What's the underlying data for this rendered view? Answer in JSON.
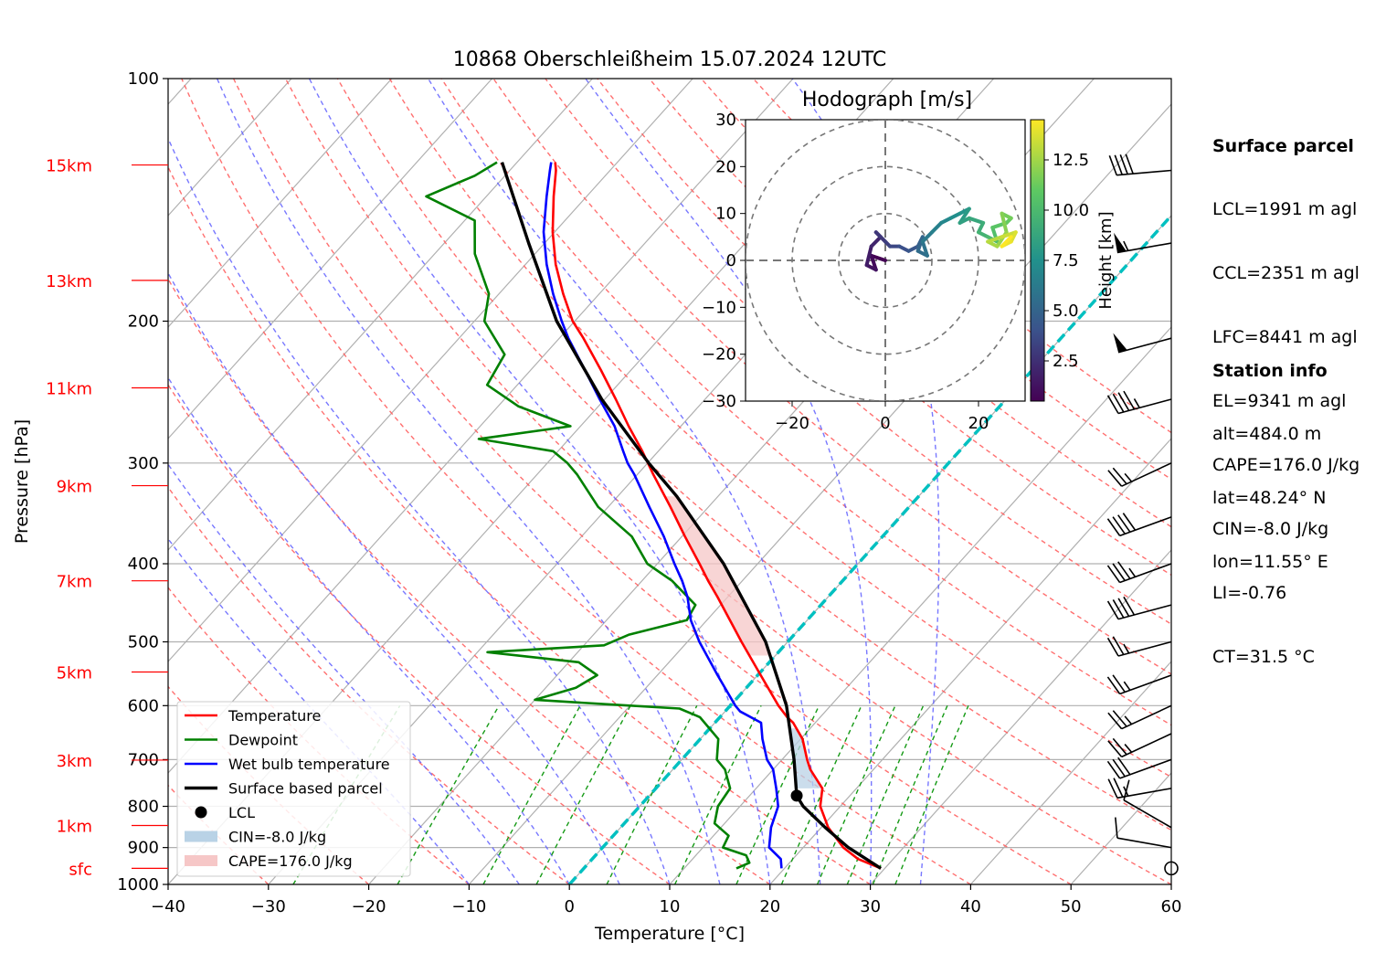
{
  "title": "10868 Oberschleißheim 15.07.2024 12UTC",
  "chart_data": {
    "type": "skew-t log-p sounding",
    "title": "10868 Oberschleißheim 15.07.2024 12UTC",
    "xlabel": "Temperature [°C]",
    "ylabel": "Pressure [hPa]",
    "xlim": [
      -40,
      60
    ],
    "ylim": [
      1000,
      100
    ],
    "y_scale": "log",
    "x_ticks": [
      "−40",
      "−30",
      "−20",
      "−10",
      "0",
      "10",
      "20",
      "30",
      "40",
      "50",
      "60"
    ],
    "y_ticks": [
      "1000",
      "900",
      "800",
      "700",
      "600",
      "500",
      "400",
      "300",
      "200",
      "100"
    ],
    "height_labels": [
      {
        "label": "sfc",
        "p": 955
      },
      {
        "label": "1km",
        "p": 845
      },
      {
        "label": "3km",
        "p": 701
      },
      {
        "label": "5km",
        "p": 545
      },
      {
        "label": "7km",
        "p": 420
      },
      {
        "label": "9km",
        "p": 320
      },
      {
        "label": "11km",
        "p": 242
      },
      {
        "label": "13km",
        "p": 178
      },
      {
        "label": "15km",
        "p": 128
      }
    ],
    "legend": {
      "position": "lower-left",
      "entries": [
        {
          "label": "Temperature",
          "color": "#ff0000"
        },
        {
          "label": "Dewpoint",
          "color": "#008000"
        },
        {
          "label": "Wet bulb temperature",
          "color": "#0000ff"
        },
        {
          "label": "Surface based parcel",
          "color": "#000000"
        },
        {
          "label": "LCL",
          "color": "#000000"
        },
        {
          "label": "CIN=-8.0 J/kg",
          "color": "#b9d2e6"
        },
        {
          "label": "CAPE=176.0 J/kg",
          "color": "#f6c7c7"
        }
      ]
    },
    "temperature": [
      [
        955,
        29.6
      ],
      [
        930,
        26.5
      ],
      [
        900,
        24.0
      ],
      [
        850,
        20.7
      ],
      [
        800,
        18.0
      ],
      [
        760,
        16.6
      ],
      [
        720,
        13.7
      ],
      [
        700,
        12.5
      ],
      [
        660,
        10.2
      ],
      [
        630,
        7.8
      ],
      [
        620,
        6.7
      ],
      [
        600,
        4.8
      ],
      [
        550,
        0.3
      ],
      [
        500,
        -4.6
      ],
      [
        470,
        -7.7
      ],
      [
        440,
        -11.0
      ],
      [
        420,
        -13.4
      ],
      [
        400,
        -15.8
      ],
      [
        370,
        -19.7
      ],
      [
        340,
        -23.8
      ],
      [
        310,
        -28.4
      ],
      [
        290,
        -31.6
      ],
      [
        270,
        -35.2
      ],
      [
        250,
        -38.9
      ],
      [
        230,
        -43.0
      ],
      [
        210,
        -47.6
      ],
      [
        200,
        -50.2
      ],
      [
        185,
        -53.6
      ],
      [
        170,
        -57.0
      ],
      [
        155,
        -60.2
      ],
      [
        140,
        -63.3
      ],
      [
        130,
        -65.4
      ],
      [
        127,
        -66.2
      ]
    ],
    "dewpoint": [
      [
        955,
        15.2
      ],
      [
        940,
        16.0
      ],
      [
        920,
        15.0
      ],
      [
        900,
        12.0
      ],
      [
        870,
        11.5
      ],
      [
        840,
        9.0
      ],
      [
        800,
        7.8
      ],
      [
        760,
        7.4
      ],
      [
        720,
        5.2
      ],
      [
        700,
        3.5
      ],
      [
        660,
        1.8
      ],
      [
        620,
        -2.0
      ],
      [
        605,
        -4.8
      ],
      [
        598,
        -12.0
      ],
      [
        590,
        -20.0
      ],
      [
        570,
        -17.0
      ],
      [
        550,
        -16.0
      ],
      [
        530,
        -19.0
      ],
      [
        515,
        -29.0
      ],
      [
        505,
        -18.0
      ],
      [
        490,
        -16.5
      ],
      [
        470,
        -12.0
      ],
      [
        450,
        -12.5
      ],
      [
        420,
        -17.0
      ],
      [
        400,
        -21.0
      ],
      [
        370,
        -25.0
      ],
      [
        340,
        -31.0
      ],
      [
        310,
        -36.0
      ],
      [
        300,
        -38.0
      ],
      [
        290,
        -40.5
      ],
      [
        280,
        -49.0
      ],
      [
        270,
        -41.0
      ],
      [
        255,
        -48.0
      ],
      [
        240,
        -53.0
      ],
      [
        220,
        -54.0
      ],
      [
        200,
        -59.0
      ],
      [
        185,
        -61.0
      ],
      [
        165,
        -66.0
      ],
      [
        150,
        -69.0
      ],
      [
        140,
        -76.0
      ],
      [
        132,
        -73.0
      ],
      [
        127,
        -72.0
      ]
    ],
    "wet_bulb": [
      [
        955,
        19.7
      ],
      [
        930,
        18.8
      ],
      [
        900,
        16.6
      ],
      [
        850,
        15.0
      ],
      [
        800,
        13.8
      ],
      [
        760,
        12.0
      ],
      [
        720,
        10.0
      ],
      [
        700,
        8.5
      ],
      [
        660,
        6.2
      ],
      [
        630,
        4.6
      ],
      [
        610,
        1.5
      ],
      [
        600,
        0.5
      ],
      [
        550,
        -4.0
      ],
      [
        500,
        -8.8
      ],
      [
        470,
        -11.6
      ],
      [
        440,
        -14.0
      ],
      [
        420,
        -16.0
      ],
      [
        400,
        -18.3
      ],
      [
        370,
        -21.8
      ],
      [
        340,
        -25.9
      ],
      [
        310,
        -30.3
      ],
      [
        300,
        -32.0
      ],
      [
        290,
        -33.5
      ],
      [
        270,
        -36.6
      ],
      [
        250,
        -40.5
      ],
      [
        230,
        -44.6
      ],
      [
        210,
        -49.1
      ],
      [
        200,
        -51.3
      ],
      [
        185,
        -54.6
      ],
      [
        170,
        -57.9
      ],
      [
        155,
        -61.1
      ],
      [
        140,
        -64.0
      ],
      [
        130,
        -66.0
      ],
      [
        127,
        -66.6
      ]
    ],
    "surface_parcel": [
      [
        955,
        29.6
      ],
      [
        900,
        24.5
      ],
      [
        850,
        20.4
      ],
      [
        800,
        16.3
      ],
      [
        776,
        14.7
      ],
      [
        700,
        11.2
      ],
      [
        600,
        5.6
      ],
      [
        500,
        -2.2
      ],
      [
        400,
        -13.4
      ],
      [
        330,
        -24.1
      ],
      [
        300,
        -29.9
      ],
      [
        250,
        -40.3
      ],
      [
        200,
        -51.8
      ],
      [
        160,
        -61.6
      ],
      [
        127,
        -71.5
      ]
    ],
    "lcl": {
      "p": 776,
      "t": 14.7,
      "label": "LCL"
    },
    "dry_adiabats_theta_c": [
      -30,
      -20,
      -10,
      0,
      10,
      20,
      30,
      40,
      50,
      60,
      70,
      80,
      90,
      100,
      110,
      120,
      130,
      140,
      150
    ],
    "moist_adiabats_c": [
      -10,
      -5,
      0,
      5,
      10,
      15,
      20,
      25,
      30,
      35
    ],
    "mixing_ratio_lines_gkg": [
      0.4,
      1,
      2,
      3,
      5,
      8,
      12,
      16,
      20,
      24,
      28,
      32
    ],
    "zero_degree_isotherm": {
      "color": "#00c0c0",
      "t": 0
    },
    "wind_barbs": [
      {
        "p": 955,
        "dir": 340,
        "spd_kt": 0
      },
      {
        "p": 900,
        "dir": 280,
        "spd_kt": 10
      },
      {
        "p": 850,
        "dir": 300,
        "spd_kt": 10
      },
      {
        "p": 760,
        "dir": 260,
        "spd_kt": 25
      },
      {
        "p": 700,
        "dir": 250,
        "spd_kt": 30
      },
      {
        "p": 650,
        "dir": 245,
        "spd_kt": 25
      },
      {
        "p": 600,
        "dir": 245,
        "spd_kt": 25
      },
      {
        "p": 550,
        "dir": 250,
        "spd_kt": 25
      },
      {
        "p": 500,
        "dir": 255,
        "spd_kt": 25
      },
      {
        "p": 450,
        "dir": 255,
        "spd_kt": 40
      },
      {
        "p": 400,
        "dir": 250,
        "spd_kt": 35
      },
      {
        "p": 350,
        "dir": 250,
        "spd_kt": 40
      },
      {
        "p": 300,
        "dir": 245,
        "spd_kt": 25
      },
      {
        "p": 250,
        "dir": 255,
        "spd_kt": 45
      },
      {
        "p": 210,
        "dir": 255,
        "spd_kt": 50
      },
      {
        "p": 160,
        "dir": 260,
        "spd_kt": 55
      },
      {
        "p": 130,
        "dir": 265,
        "spd_kt": 40
      }
    ],
    "hodograph": {
      "title": "Hodograph [m/s]",
      "xlim": [
        -30,
        30
      ],
      "ylim": [
        -30,
        30
      ],
      "x_ticks": [
        "−20",
        "0",
        "20"
      ],
      "y_ticks": [
        "30",
        "20",
        "10",
        "0",
        "−10",
        "−20",
        "−30"
      ],
      "rings": [
        10,
        20,
        30
      ],
      "colorbar": {
        "label": "Height [km]",
        "ticks": [
          "2.5",
          "5.0",
          "7.5",
          "10.0",
          "12.5"
        ],
        "min": 0.5,
        "max": 14.5,
        "colormap": "viridis"
      },
      "track": [
        [
          0,
          0
        ],
        [
          -3,
          1
        ],
        [
          -2,
          -2
        ],
        [
          -4,
          -1
        ],
        [
          -3,
          3
        ],
        [
          -1,
          5
        ],
        [
          -2,
          6
        ],
        [
          0,
          4
        ],
        [
          1,
          3
        ],
        [
          3,
          3
        ],
        [
          5,
          2
        ],
        [
          7,
          3
        ],
        [
          8,
          5
        ],
        [
          7,
          2
        ],
        [
          9,
          1
        ],
        [
          8,
          4
        ],
        [
          10,
          6
        ],
        [
          12,
          8
        ],
        [
          14,
          9
        ],
        [
          16,
          10
        ],
        [
          18,
          11
        ],
        [
          16,
          8
        ],
        [
          18,
          9
        ],
        [
          21,
          8
        ],
        [
          20,
          6
        ],
        [
          22,
          5
        ],
        [
          24,
          4
        ],
        [
          23,
          7
        ],
        [
          26,
          8
        ],
        [
          27,
          9
        ],
        [
          25,
          10
        ],
        [
          26,
          6
        ],
        [
          24,
          3
        ],
        [
          22,
          4
        ],
        [
          25,
          5
        ],
        [
          28,
          6
        ],
        [
          27,
          4
        ],
        [
          25,
          3
        ],
        [
          27,
          5
        ]
      ]
    }
  },
  "surface_parcel": {
    "heading": "Surface parcel",
    "lines": [
      "LCL=1991 m agl",
      "CCL=2351 m agl",
      "LFC=8441 m agl",
      "EL=9341 m agl",
      "CAPE=176.0 J/kg",
      "CIN=-8.0 J/kg",
      "LI=-0.76",
      "CT=31.5 °C"
    ]
  },
  "station_info": {
    "heading": "Station info",
    "lines": [
      "alt=484.0 m",
      "lat=48.24° N",
      "lon=11.55° E"
    ]
  }
}
